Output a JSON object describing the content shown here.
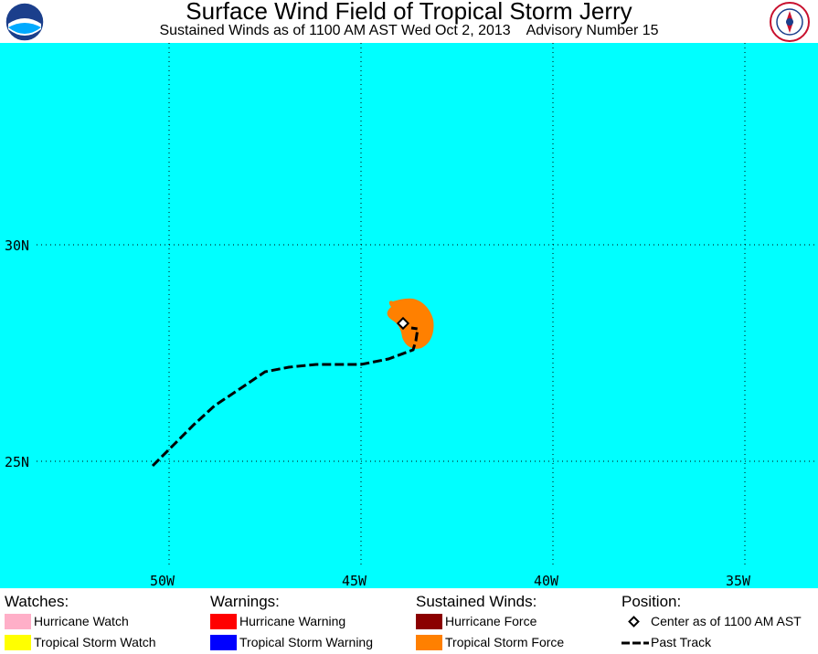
{
  "header": {
    "title": "Surface Wind Field of Tropical Storm Jerry",
    "subtitle": "Sustained Winds as of 1100 AM AST Wed Oct 2, 2013    Advisory Number 15",
    "left_logo": "noaa-logo",
    "right_logo": "nws-logo"
  },
  "map": {
    "ocean_color": "#00ffff",
    "lon_labels": [
      "50W",
      "45W",
      "40W",
      "35W"
    ],
    "lat_labels": [
      "30N",
      "25N"
    ],
    "wind_field_color": "#ff8000",
    "center_marker": "diamond",
    "track_style": "dashed"
  },
  "legend": {
    "watches": {
      "heading": "Watches:",
      "items": [
        {
          "label": "Hurricane Watch",
          "color": "#ffafc8"
        },
        {
          "label": "Tropical Storm Watch",
          "color": "#ffff00"
        }
      ]
    },
    "warnings": {
      "heading": "Warnings:",
      "items": [
        {
          "label": "Hurricane Warning",
          "color": "#ff0000"
        },
        {
          "label": "Tropical Storm Warning",
          "color": "#0000ff"
        }
      ]
    },
    "winds": {
      "heading": "Sustained Winds:",
      "items": [
        {
          "label": "Hurricane Force",
          "color": "#8b0000"
        },
        {
          "label": "Tropical Storm Force",
          "color": "#ff8000"
        }
      ]
    },
    "position": {
      "heading": "Position:",
      "items": [
        {
          "label": "Center as of 1100 AM AST",
          "icon": "diamond-icon"
        },
        {
          "label": "Past Track",
          "icon": "dashed-line-icon"
        }
      ]
    }
  }
}
